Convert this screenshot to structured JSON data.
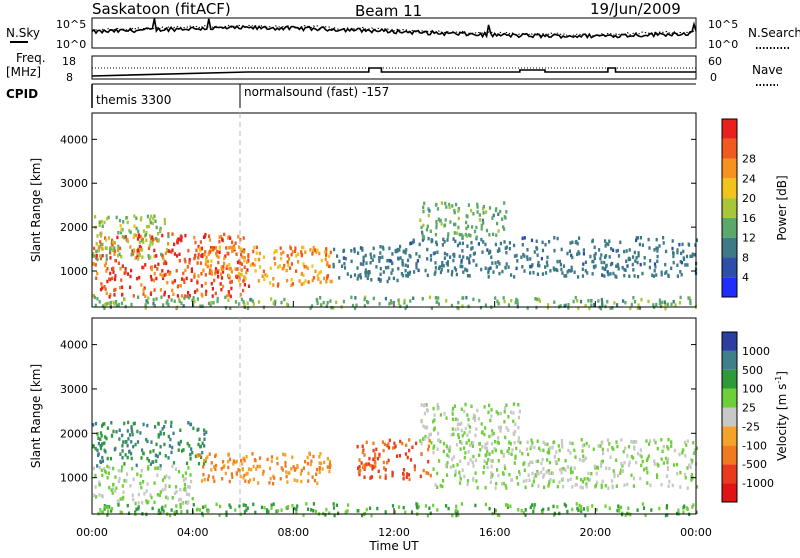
{
  "header": {
    "station": "Saskatoon (fitACF)",
    "beam": "Beam 11",
    "date": "19/Jun/2009"
  },
  "noise_panel": {
    "left_label": "N.Sky",
    "left_ticks": [
      "10^5",
      "10^0"
    ],
    "right_label": "N.Search",
    "right_ticks": [
      "10^5",
      "10^0"
    ]
  },
  "freq_panel": {
    "left_label_1": "Freq.",
    "left_label_2": "[MHz]",
    "left_ticks": [
      "18",
      "8"
    ],
    "right_label": "Nave",
    "right_ticks": [
      "60",
      "0"
    ]
  },
  "cpid_panel": {
    "label": "CPID",
    "modes": [
      {
        "name": "themis 3300",
        "start_hour": 0,
        "end_hour": 6.0
      },
      {
        "name": "normalsound (fast) -157",
        "start_hour": 6.0,
        "end_hour": 24
      }
    ]
  },
  "x_axis": {
    "title": "Time UT",
    "tick_labels": [
      "00:00",
      "04:00",
      "08:00",
      "12:00",
      "16:00",
      "20:00",
      "00:00"
    ]
  },
  "y_axis": {
    "title": "Slant Range [km]",
    "tick_labels": [
      "1000",
      "2000",
      "3000",
      "4000"
    ]
  },
  "power_colorbar": {
    "title": "Power [dB]",
    "ticks": [
      "4",
      "8",
      "12",
      "16",
      "20",
      "24",
      "28"
    ],
    "colors": [
      "#1f2dff",
      "#2c50a8",
      "#3d7a86",
      "#5aa86a",
      "#a9c53a",
      "#f2c41a",
      "#f7921e",
      "#f05a1e",
      "#e8201e"
    ]
  },
  "velocity_colorbar": {
    "title": "Velocity [m s-1]",
    "ticks": [
      "1000",
      "500",
      "100",
      "25",
      "-25",
      "-100",
      "-500",
      "-1000"
    ],
    "colors": [
      "#2b3fa0",
      "#3e7f8a",
      "#2f9a3a",
      "#6fcf3a",
      "#c8c8c8",
      "#f4a32a",
      "#f07a1e",
      "#ea3a1e",
      "#e01414"
    ]
  },
  "chart_data": [
    {
      "type": "heatmap",
      "title": "Power [dB]",
      "xlabel": "Time UT",
      "ylabel": "Slant Range [km]",
      "xlim_hours": [
        0,
        24
      ],
      "ylim_km": [
        180,
        4600
      ],
      "colorbar_range": [
        0,
        30
      ],
      "patches": [
        {
          "t0": 0.0,
          "t1": 6.2,
          "r0": 450,
          "r1": 1900,
          "level": 26
        },
        {
          "t0": 0.0,
          "t1": 3.0,
          "r0": 1300,
          "r1": 2300,
          "level": 14
        },
        {
          "t0": 4.0,
          "t1": 9.5,
          "r0": 700,
          "r1": 1600,
          "level": 22
        },
        {
          "t0": 9.5,
          "t1": 12.5,
          "r0": 800,
          "r1": 1600,
          "level": 8
        },
        {
          "t0": 12.0,
          "t1": 24.0,
          "r0": 900,
          "r1": 1800,
          "level": 8
        },
        {
          "t0": 13.0,
          "t1": 16.5,
          "r0": 1800,
          "r1": 2600,
          "level": 12
        },
        {
          "t0": 0.0,
          "t1": 24.0,
          "r0": 180,
          "r1": 450,
          "level": 12
        }
      ]
    },
    {
      "type": "heatmap",
      "title": "Velocity [m s-1]",
      "xlabel": "Time UT",
      "ylabel": "Slant Range [km]",
      "xlim_hours": [
        0,
        24
      ],
      "ylim_km": [
        180,
        4600
      ],
      "colorbar_range": [
        -1000,
        1000
      ],
      "patches": [
        {
          "t0": 0.0,
          "t1": 4.5,
          "r0": 1300,
          "r1": 2300,
          "level": 100
        },
        {
          "t0": 0.0,
          "t1": 4.0,
          "r0": 450,
          "r1": 1300,
          "level": 0
        },
        {
          "t0": 4.0,
          "t1": 9.5,
          "r0": 900,
          "r1": 1600,
          "level": -100
        },
        {
          "t0": 10.5,
          "t1": 13.5,
          "r0": 1000,
          "r1": 1900,
          "level": -500
        },
        {
          "t0": 13.5,
          "t1": 24.0,
          "r0": 800,
          "r1": 1900,
          "level": 0
        },
        {
          "t0": 13.0,
          "t1": 17.0,
          "r0": 1800,
          "r1": 2700,
          "level": 0
        },
        {
          "t0": 0.0,
          "t1": 24.0,
          "r0": 180,
          "r1": 450,
          "level": 25
        }
      ]
    }
  ]
}
